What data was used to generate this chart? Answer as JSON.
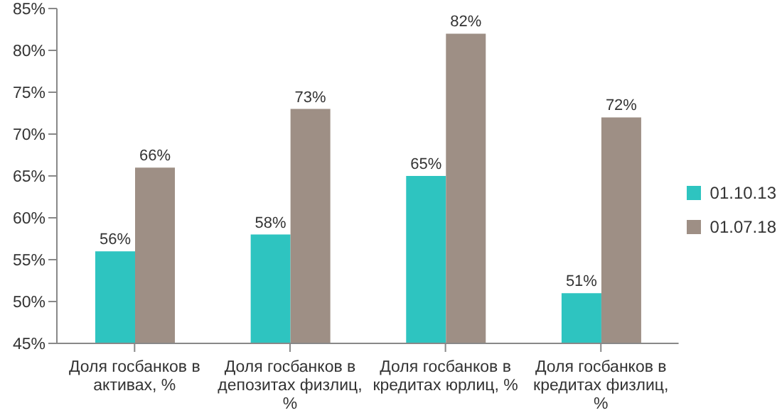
{
  "chart_data": {
    "type": "bar",
    "categories": [
      "Доля госбанков в активах, %",
      "Доля госбанков в депозитах физлиц, %",
      "Доля госбанков в кредитах юрлиц, %",
      "Доля госбанков в кредитах физлиц, %"
    ],
    "series": [
      {
        "name": "01.10.13",
        "color": "#2ec4c0",
        "values": [
          56,
          58,
          65,
          51
        ],
        "value_labels": [
          "56%",
          "58%",
          "65%",
          "51%"
        ]
      },
      {
        "name": "01.07.18",
        "color": "#9e8f85",
        "values": [
          66,
          73,
          82,
          72
        ],
        "value_labels": [
          "66%",
          "73%",
          "82%",
          "72%"
        ]
      }
    ],
    "ylim": [
      45,
      85
    ],
    "yticks": [
      {
        "value": 45,
        "label": "45%"
      },
      {
        "value": 50,
        "label": "50%"
      },
      {
        "value": 55,
        "label": "55%"
      },
      {
        "value": 60,
        "label": "60%"
      },
      {
        "value": 65,
        "label": "65%"
      },
      {
        "value": 70,
        "label": "70%"
      },
      {
        "value": 75,
        "label": "75%"
      },
      {
        "value": 80,
        "label": "80%"
      },
      {
        "value": 85,
        "label": "85%"
      }
    ],
    "grid": false,
    "legend": "right"
  }
}
